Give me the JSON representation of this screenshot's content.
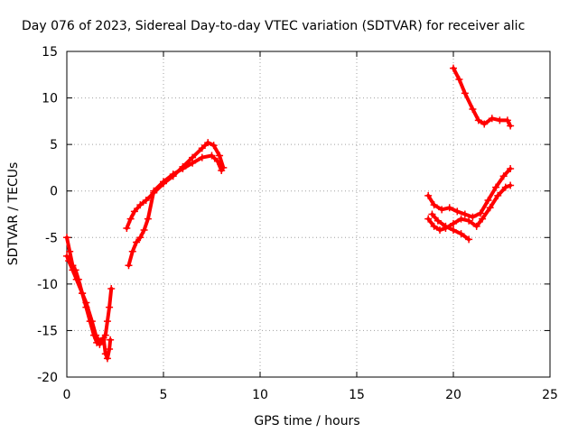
{
  "chart_data": {
    "type": "scatter",
    "title": "Day 076 of 2023, Sidereal Day-to-day VTEC variation (SDTVAR) for receiver alic",
    "xlabel": "GPS time / hours",
    "ylabel": "SDTVAR / TECUs",
    "xlim": [
      0,
      25
    ],
    "ylim": [
      -20,
      15
    ],
    "x_ticks": [
      0,
      5,
      10,
      15,
      20,
      25
    ],
    "y_ticks": [
      -20,
      -15,
      -10,
      -5,
      0,
      5,
      10,
      15
    ],
    "grid": true,
    "series_color": "#ff0000",
    "series": [
      {
        "x": [
          0.0,
          0.15,
          0.3,
          0.45,
          0.6,
          0.8,
          1.0,
          1.2,
          1.4,
          1.55,
          1.7,
          1.85,
          2.0,
          2.1,
          2.2,
          2.3
        ],
        "y": [
          -5.0,
          -6.5,
          -8.0,
          -8.5,
          -9.5,
          -11.0,
          -12.5,
          -14.0,
          -15.5,
          -16.3,
          -16.5,
          -16.0,
          -15.5,
          -14.0,
          -12.5,
          -10.5
        ]
      },
      {
        "x": [
          0.0,
          0.1,
          0.3,
          0.5,
          0.8,
          1.0,
          1.3,
          1.5,
          1.7,
          1.9,
          2.0,
          2.1,
          2.2,
          2.25
        ],
        "y": [
          -7.0,
          -7.5,
          -8.5,
          -9.5,
          -11.0,
          -12.0,
          -14.0,
          -15.5,
          -16.2,
          -15.8,
          -17.5,
          -18.0,
          -17.0,
          -16.0
        ]
      },
      {
        "x": [
          3.1,
          3.3,
          3.5,
          3.8,
          4.1,
          4.5,
          5.0,
          5.5,
          6.0,
          6.5,
          7.0,
          7.3,
          7.6,
          7.9,
          8.1
        ],
        "y": [
          -4.0,
          -3.0,
          -2.2,
          -1.5,
          -1.0,
          -0.2,
          0.8,
          1.6,
          2.6,
          3.6,
          4.6,
          5.2,
          4.9,
          3.8,
          2.5
        ]
      },
      {
        "x": [
          3.2,
          3.4,
          3.6,
          3.8,
          4.0,
          4.2,
          4.5,
          5.0,
          5.5,
          6.0,
          6.5,
          7.0,
          7.5,
          7.8,
          8.0
        ],
        "y": [
          -8.0,
          -6.5,
          -5.5,
          -5.0,
          -4.2,
          -3.0,
          0.0,
          1.0,
          1.8,
          2.4,
          3.0,
          3.6,
          3.8,
          3.2,
          2.2
        ]
      },
      {
        "x": [
          20.0,
          20.3,
          20.6,
          21.0,
          21.3,
          21.6,
          22.0,
          22.4,
          22.8,
          22.95
        ],
        "y": [
          13.2,
          12.0,
          10.5,
          8.8,
          7.6,
          7.2,
          7.8,
          7.6,
          7.6,
          7.0
        ]
      },
      {
        "x": [
          18.7,
          19.0,
          19.4,
          19.8,
          20.2,
          20.6,
          21.0,
          21.4,
          21.8,
          22.2,
          22.6,
          22.95
        ],
        "y": [
          -0.5,
          -1.5,
          -2.0,
          -1.8,
          -2.2,
          -2.5,
          -2.8,
          -2.4,
          -1.0,
          0.4,
          1.6,
          2.4
        ]
      },
      {
        "x": [
          18.7,
          19.0,
          19.3,
          19.6,
          20.0,
          20.4,
          20.8,
          21.2,
          21.5,
          21.9,
          22.3,
          22.7,
          22.95
        ],
        "y": [
          -3.0,
          -3.8,
          -4.2,
          -4.0,
          -3.5,
          -3.0,
          -3.2,
          -3.8,
          -3.0,
          -1.8,
          -0.5,
          0.4,
          0.6
        ]
      },
      {
        "x": [
          18.9,
          19.2,
          19.6,
          20.0,
          20.4,
          20.8
        ],
        "y": [
          -2.5,
          -3.2,
          -3.8,
          -4.2,
          -4.6,
          -5.2
        ]
      }
    ]
  }
}
